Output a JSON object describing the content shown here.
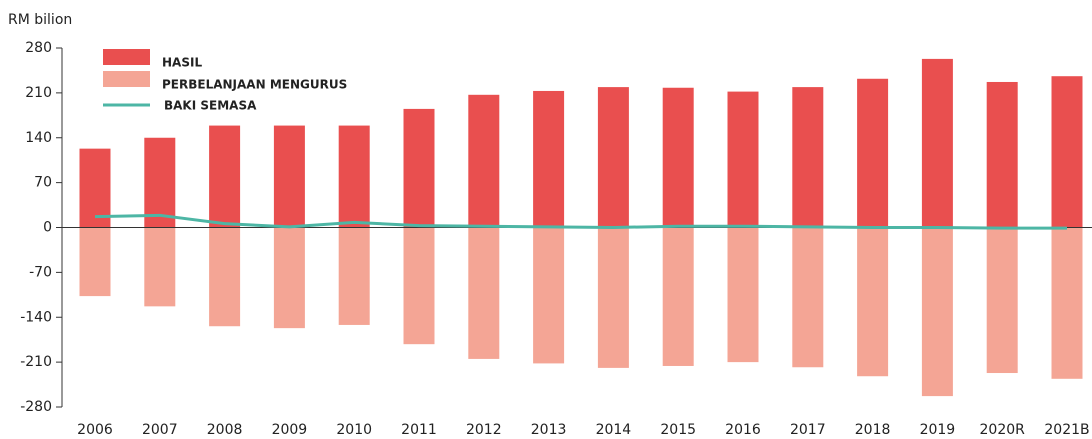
{
  "chart_data": {
    "type": "bar",
    "y_label": "RM bilion",
    "categories": [
      "2006",
      "2007",
      "2008",
      "2009",
      "2010",
      "2011",
      "2012",
      "2013",
      "2014",
      "2015",
      "2016",
      "2017",
      "2018",
      "2019",
      "2020R",
      "2021B"
    ],
    "series": [
      {
        "name": "HASIL",
        "type": "bar",
        "color": "#e94f4f",
        "values": [
          123,
          140,
          159,
          159,
          159,
          185,
          207,
          213,
          219,
          218,
          212,
          219,
          232,
          263,
          227,
          236
        ]
      },
      {
        "name": "PERBELANJAAN MENGURUS",
        "type": "bar",
        "color": "#f4a595",
        "values": [
          -107,
          -123,
          -154,
          -157,
          -152,
          -182,
          -205,
          -212,
          -219,
          -216,
          -210,
          -218,
          -232,
          -263,
          -227,
          -236
        ]
      },
      {
        "name": "BAKI SEMASA",
        "type": "line",
        "color": "#4db6a5",
        "values": [
          17,
          19,
          6,
          1,
          8,
          3,
          2,
          1,
          0,
          2,
          2,
          1,
          0,
          0,
          -1,
          -1
        ]
      }
    ],
    "ylim": [
      -280,
      280
    ],
    "yticks": [
      -280,
      -210,
      -140,
      -70,
      0,
      70,
      140,
      210,
      280
    ]
  }
}
